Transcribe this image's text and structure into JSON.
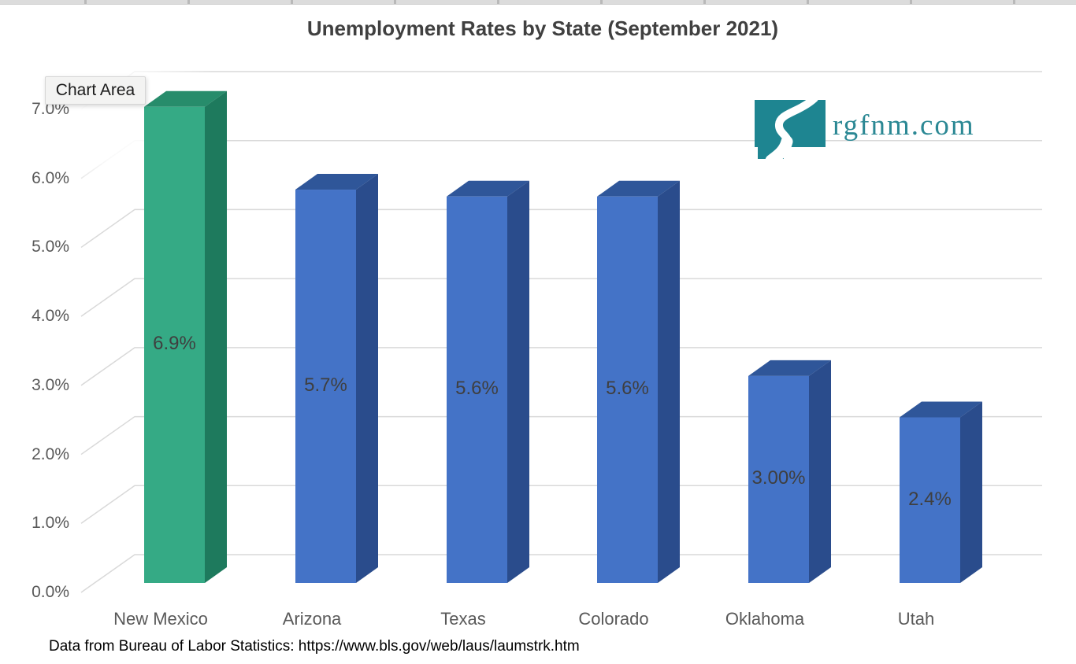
{
  "title": "Unemployment Rates by State (September 2021)",
  "tooltip_label": "Chart Area",
  "logo": {
    "text": "rgfnm.com",
    "icon": "new-mexico-state-with-river"
  },
  "footnote": "Data from Bureau of Labor Statistics: https://www.bls.gov/web/laus/laumstrk.htm",
  "colors": {
    "bar_default_front": "#4473C7",
    "bar_default_top": "#2F5699",
    "bar_default_side": "#2A4C8C",
    "bar_highlight_front": "#35AA85",
    "bar_highlight_top": "#278C6B",
    "bar_highlight_side": "#1E7A5D",
    "gridline": "#D9D9D9",
    "axis_text": "#595959",
    "data_label_text": "#3F3F3F",
    "title_text": "#404040",
    "logo_teal": "#1E8591",
    "logo_text_teal": "#2B8894"
  },
  "chart_data": {
    "type": "bar",
    "projection": "3d",
    "title": "Unemployment Rates by State (September 2021)",
    "categories": [
      "New Mexico",
      "Arizona",
      "Texas",
      "Colorado",
      "Oklahoma",
      "Utah"
    ],
    "values": [
      6.9,
      5.7,
      5.6,
      5.6,
      3.0,
      2.4
    ],
    "data_labels": [
      "6.9%",
      "5.7%",
      "5.6%",
      "5.6%",
      "3.00%",
      "2.4%"
    ],
    "highlighted_category": "New Mexico",
    "y_axis": {
      "ticks": [
        "0.0%",
        "1.0%",
        "2.0%",
        "3.0%",
        "4.0%",
        "5.0%",
        "6.0%",
        "7.0%"
      ],
      "range": [
        0,
        7
      ],
      "unit": "percent"
    },
    "gridlines": true,
    "legend": false,
    "source_note": "Data from Bureau of Labor Statistics: https://www.bls.gov/web/laus/laumstrk.htm"
  }
}
